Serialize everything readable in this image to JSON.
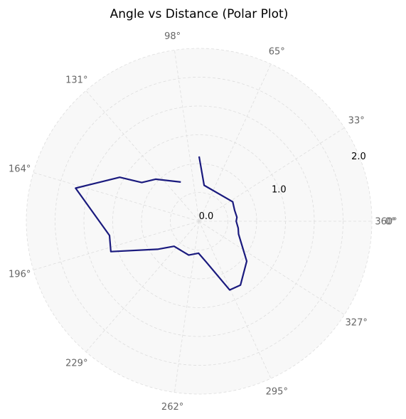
{
  "chart_data": {
    "type": "line",
    "subtype": "polar",
    "title": "Angle vs Distance (Polar Plot)",
    "angle_tick_labels": [
      "360°",
      "33°",
      "65°",
      "98°",
      "131°",
      "164°",
      "196°",
      "229°",
      "262°",
      "295°",
      "327°",
      "0°"
    ],
    "radial_tick_labels": [
      "0.0",
      "1.0",
      "2.0"
    ],
    "rlim": [
      0,
      2.0
    ],
    "grid": true,
    "series": [
      {
        "color": "#1a1a7e",
        "points": [
          {
            "angle_deg": 90,
            "r": 0.75
          },
          {
            "angle_deg": 82,
            "r": 0.42
          },
          {
            "angle_deg": 30,
            "r": 0.45
          },
          {
            "angle_deg": 17,
            "r": 0.43
          },
          {
            "angle_deg": 6,
            "r": 0.44
          },
          {
            "angle_deg": 0,
            "r": 0.43
          },
          {
            "angle_deg": -10,
            "r": 0.46
          },
          {
            "angle_deg": -18,
            "r": 0.48
          },
          {
            "angle_deg": -40,
            "r": 0.72
          },
          {
            "angle_deg": -57,
            "r": 0.88
          },
          {
            "angle_deg": -66,
            "r": 0.87
          },
          {
            "angle_deg": -80,
            "r": 0.48
          },
          {
            "angle_deg": -91,
            "r": 0.37
          },
          {
            "angle_deg": -107,
            "r": 0.41
          },
          {
            "angle_deg": -135,
            "r": 0.41
          },
          {
            "angle_deg": -146,
            "r": 0.58
          },
          {
            "angle_deg": -161,
            "r": 1.08
          },
          {
            "angle_deg": -171,
            "r": 1.05
          },
          {
            "angle_deg": 165,
            "r": 1.48
          },
          {
            "angle_deg": 151,
            "r": 1.05
          },
          {
            "angle_deg": 146,
            "r": 0.8
          },
          {
            "angle_deg": 136,
            "r": 0.7
          },
          {
            "angle_deg": 115,
            "r": 0.5
          }
        ]
      }
    ]
  }
}
